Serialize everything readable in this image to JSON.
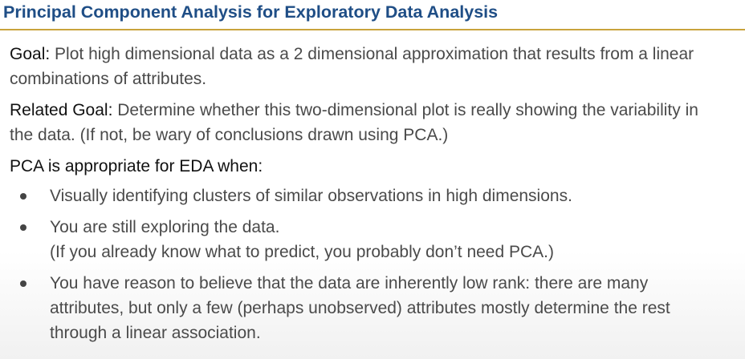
{
  "title": "Principal Component Analysis for Exploratory Data Analysis",
  "goal": {
    "label": "Goal:",
    "line1": "Plot high dimensional data as a 2 dimensional approximation that results from a linear",
    "line2": "combinations of attributes."
  },
  "related_goal": {
    "label": "Related Goal:",
    "line1": "Determine whether this two-dimensional plot is really showing the variability in",
    "line2": "the data. (If not, be wary of conclusions drawn using PCA.)"
  },
  "eda_heading": "PCA is appropriate  for EDA when:",
  "bullets": [
    {
      "line1": "Visually identifying clusters of similar observations in high dimensions."
    },
    {
      "line1": "You are still exploring the data.",
      "line2": "(If you already know what to predict, you probably don’t need PCA.)"
    },
    {
      "line1": "You have reason to believe that the data are inherently low rank: there are many",
      "line2": "attributes, but only a few (perhaps unobserved) attributes mostly determine the rest",
      "line3": "through a linear association."
    }
  ]
}
